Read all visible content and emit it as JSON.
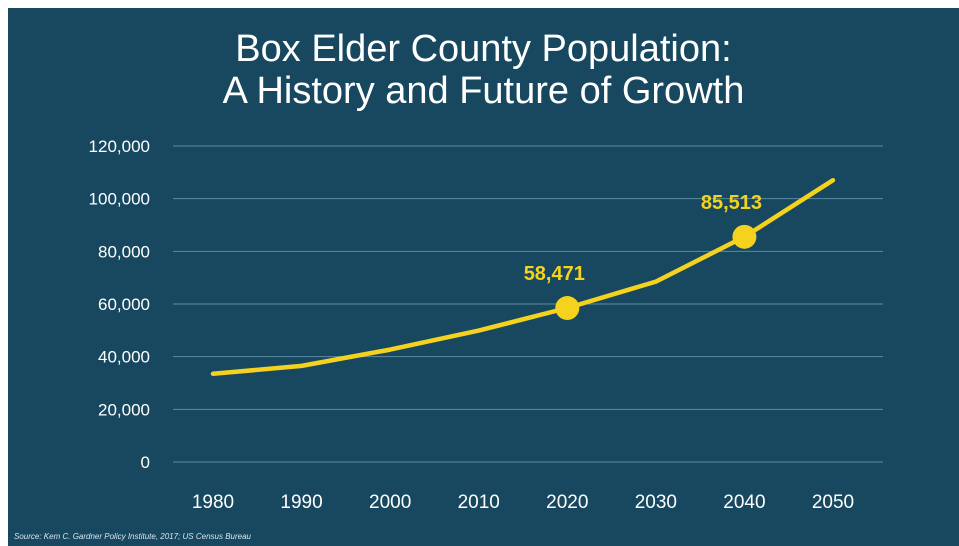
{
  "chart_data": {
    "type": "line",
    "title_line1": "Box Elder County Population:",
    "title_line2": "A History and Future of Growth",
    "xlabel": "",
    "ylabel": "",
    "x": [
      "1980",
      "1990",
      "2000",
      "2010",
      "2020",
      "2030",
      "2040",
      "2050"
    ],
    "series": [
      {
        "values": [
          33500,
          36500,
          42700,
          49900,
          58471,
          68500,
          85513,
          107000
        ]
      }
    ],
    "yticks": [
      "0",
      "20,000",
      "40,000",
      "60,000",
      "80,000",
      "100,000",
      "120,000"
    ],
    "ylim": [
      0,
      120000
    ],
    "grid": true,
    "annotations": [
      {
        "x": "2020",
        "value": 58471,
        "label": "58,471"
      },
      {
        "x": "2040",
        "value": 85513,
        "label": "85,513"
      }
    ],
    "source": "Source: Kem C. Gardner Policy Institute, 2017; US Census Bureau"
  },
  "colors": {
    "background": "#17485f",
    "line": "#f5d21e",
    "grid": "#5d8aa0",
    "text": "#ffffff",
    "annotation": "#f5d21e"
  }
}
